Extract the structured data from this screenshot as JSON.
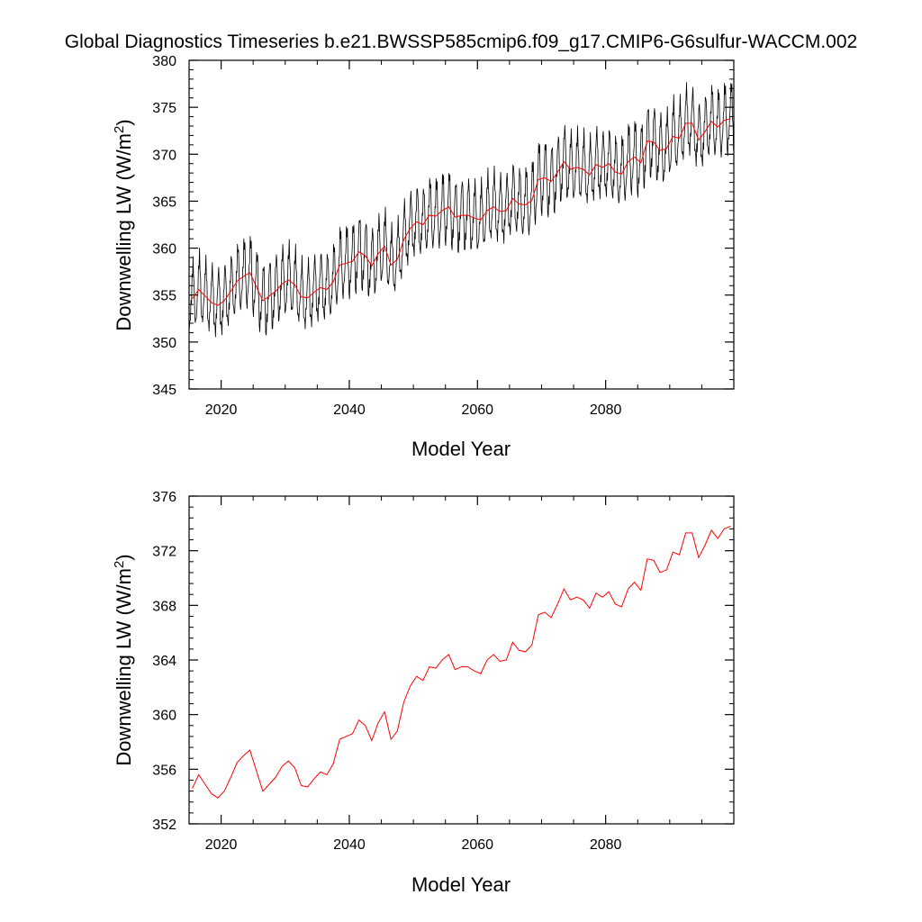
{
  "title": "Global Diagnostics Timeseries b.e21.BWSSP585cmip6.f09_g17.CMIP6-G6sulfur-WACCM.002",
  "colors": {
    "monthly": "#000000",
    "annual": "#ff0000",
    "axis": "#000000"
  },
  "chart_data": [
    {
      "type": "line",
      "xlabel": "Model Year",
      "ylabel": "Downwelling LW (W/m²)",
      "ylabel_main": "Downwelling LW (W/m",
      "ylabel_sup": "2",
      "ylabel_close": ")",
      "xlim": [
        2015,
        2100
      ],
      "ylim": [
        345,
        380
      ],
      "xticks": [
        2020,
        2040,
        2060,
        2080
      ],
      "yticks": [
        345,
        350,
        355,
        360,
        365,
        370,
        375,
        380
      ],
      "xtick_labels": [
        "2020",
        "2040",
        "2060",
        "2080"
      ],
      "ytick_labels": [
        "345",
        "350",
        "355",
        "360",
        "365",
        "370",
        "375",
        "380"
      ],
      "grid": false,
      "series": [
        {
          "kind": "monthly",
          "seasonal_amplitude": 3.8,
          "values_from": "annual_mean"
        },
        {
          "kind": "annual",
          "values_from": "annual_mean"
        }
      ]
    },
    {
      "type": "line",
      "xlabel": "Model Year",
      "ylabel": "Downwelling LW (W/m²)",
      "ylabel_main": "Downwelling LW (W/m",
      "ylabel_sup": "2",
      "ylabel_close": ")",
      "xlim": [
        2015,
        2100
      ],
      "ylim": [
        352,
        376
      ],
      "xticks": [
        2020,
        2040,
        2060,
        2080
      ],
      "yticks": [
        352,
        356,
        360,
        364,
        368,
        372,
        376
      ],
      "xtick_labels": [
        "2020",
        "2040",
        "2060",
        "2080"
      ],
      "ytick_labels": [
        "352",
        "356",
        "360",
        "364",
        "368",
        "372",
        "376"
      ],
      "grid": false,
      "series": [
        {
          "kind": "annual",
          "values_from": "annual_mean"
        }
      ]
    }
  ],
  "annual_mean": {
    "x": [
      2015.5,
      2016.5,
      2017.5,
      2018.5,
      2019.5,
      2020.5,
      2021.5,
      2022.5,
      2023.5,
      2024.5,
      2025.5,
      2026.5,
      2027.5,
      2028.5,
      2029.5,
      2030.5,
      2031.5,
      2032.5,
      2033.5,
      2034.5,
      2035.5,
      2036.5,
      2037.5,
      2038.5,
      2039.5,
      2040.5,
      2041.5,
      2042.5,
      2043.5,
      2044.5,
      2045.5,
      2046.5,
      2047.5,
      2048.5,
      2049.5,
      2050.5,
      2051.5,
      2052.5,
      2053.5,
      2054.5,
      2055.5,
      2056.5,
      2057.5,
      2058.5,
      2059.5,
      2060.5,
      2061.5,
      2062.5,
      2063.5,
      2064.5,
      2065.5,
      2066.5,
      2067.5,
      2068.5,
      2069.5,
      2070.5,
      2071.5,
      2072.5,
      2073.5,
      2074.5,
      2075.5,
      2076.5,
      2077.5,
      2078.5,
      2079.5,
      2080.5,
      2081.5,
      2082.5,
      2083.5,
      2084.5,
      2085.5,
      2086.5,
      2087.5,
      2088.5,
      2089.5,
      2090.5,
      2091.5,
      2092.5,
      2093.5,
      2094.5,
      2095.5,
      2096.5,
      2097.5,
      2098.5,
      2099.5
    ],
    "y": [
      354.6,
      355.6,
      354.9,
      354.2,
      353.9,
      354.4,
      355.4,
      356.5,
      357.0,
      357.4,
      355.9,
      354.4,
      354.9,
      355.4,
      356.2,
      356.6,
      356.1,
      354.8,
      354.7,
      355.3,
      355.8,
      355.6,
      356.4,
      358.2,
      358.4,
      358.6,
      359.6,
      359.2,
      358.1,
      359.4,
      360.2,
      358.2,
      358.8,
      360.9,
      362.1,
      362.8,
      362.5,
      363.5,
      363.4,
      364.0,
      364.4,
      363.3,
      363.5,
      363.5,
      363.2,
      363.0,
      364.0,
      364.4,
      363.9,
      364.0,
      365.3,
      364.7,
      364.6,
      365.1,
      367.3,
      367.5,
      367.1,
      368.1,
      369.2,
      368.4,
      368.6,
      368.4,
      367.8,
      368.9,
      368.6,
      369.0,
      368.1,
      367.9,
      369.2,
      369.7,
      369.1,
      371.4,
      371.3,
      370.4,
      370.6,
      371.9,
      371.7,
      373.3,
      373.3,
      371.5,
      372.4,
      373.5,
      372.9,
      373.6,
      373.8
    ]
  }
}
